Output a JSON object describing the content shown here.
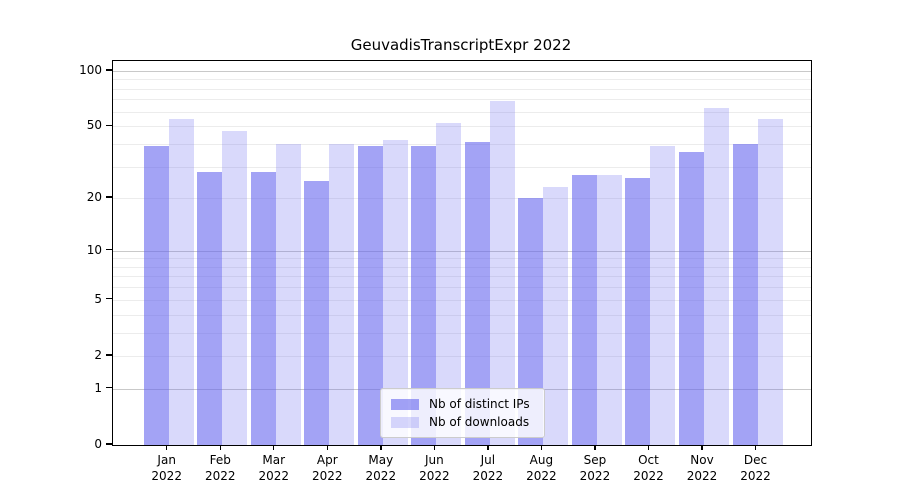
{
  "figure": {
    "title": "GeuvadisTranscriptExpr 2022"
  },
  "chart_data": {
    "type": "bar",
    "title": "GeuvadisTranscriptExpr 2022",
    "year_label": "2022",
    "months": [
      "Jan",
      "Feb",
      "Mar",
      "Apr",
      "May",
      "Jun",
      "Jul",
      "Aug",
      "Sep",
      "Oct",
      "Nov",
      "Dec"
    ],
    "series": [
      {
        "name": "Nb of distinct IPs",
        "color": "rgba(102,102,238,0.60)",
        "values": [
          39,
          28,
          28,
          25,
          39,
          39,
          41,
          20,
          27,
          26,
          36,
          40
        ]
      },
      {
        "name": "Nb of downloads",
        "color": "rgba(102,102,238,0.25)",
        "values": [
          55,
          47,
          40,
          40,
          42,
          52,
          69,
          23,
          27,
          39,
          63,
          55
        ]
      }
    ],
    "xlabel": "",
    "ylabel": "",
    "y_scale": "log1p",
    "ylim": [
      0,
      113
    ],
    "y_tick_values": [
      100,
      50,
      20,
      10,
      5,
      2,
      1,
      0
    ],
    "y_tick_labels": [
      "100",
      "50",
      "20",
      "10",
      "5",
      "2",
      "1",
      "0"
    ],
    "major_gridline_values": [
      1,
      10,
      100
    ],
    "minor_gridline_values": [
      2,
      3,
      4,
      5,
      6,
      7,
      8,
      9,
      20,
      30,
      40,
      50,
      60,
      70,
      80,
      90
    ],
    "grid": true,
    "legend_position": "lower center",
    "colors": {
      "bar_base": "#6666ee",
      "major_grid": "#c9c9c9",
      "minor_grid": "#ececec",
      "spine": "#000000",
      "background": "#ffffff"
    }
  }
}
